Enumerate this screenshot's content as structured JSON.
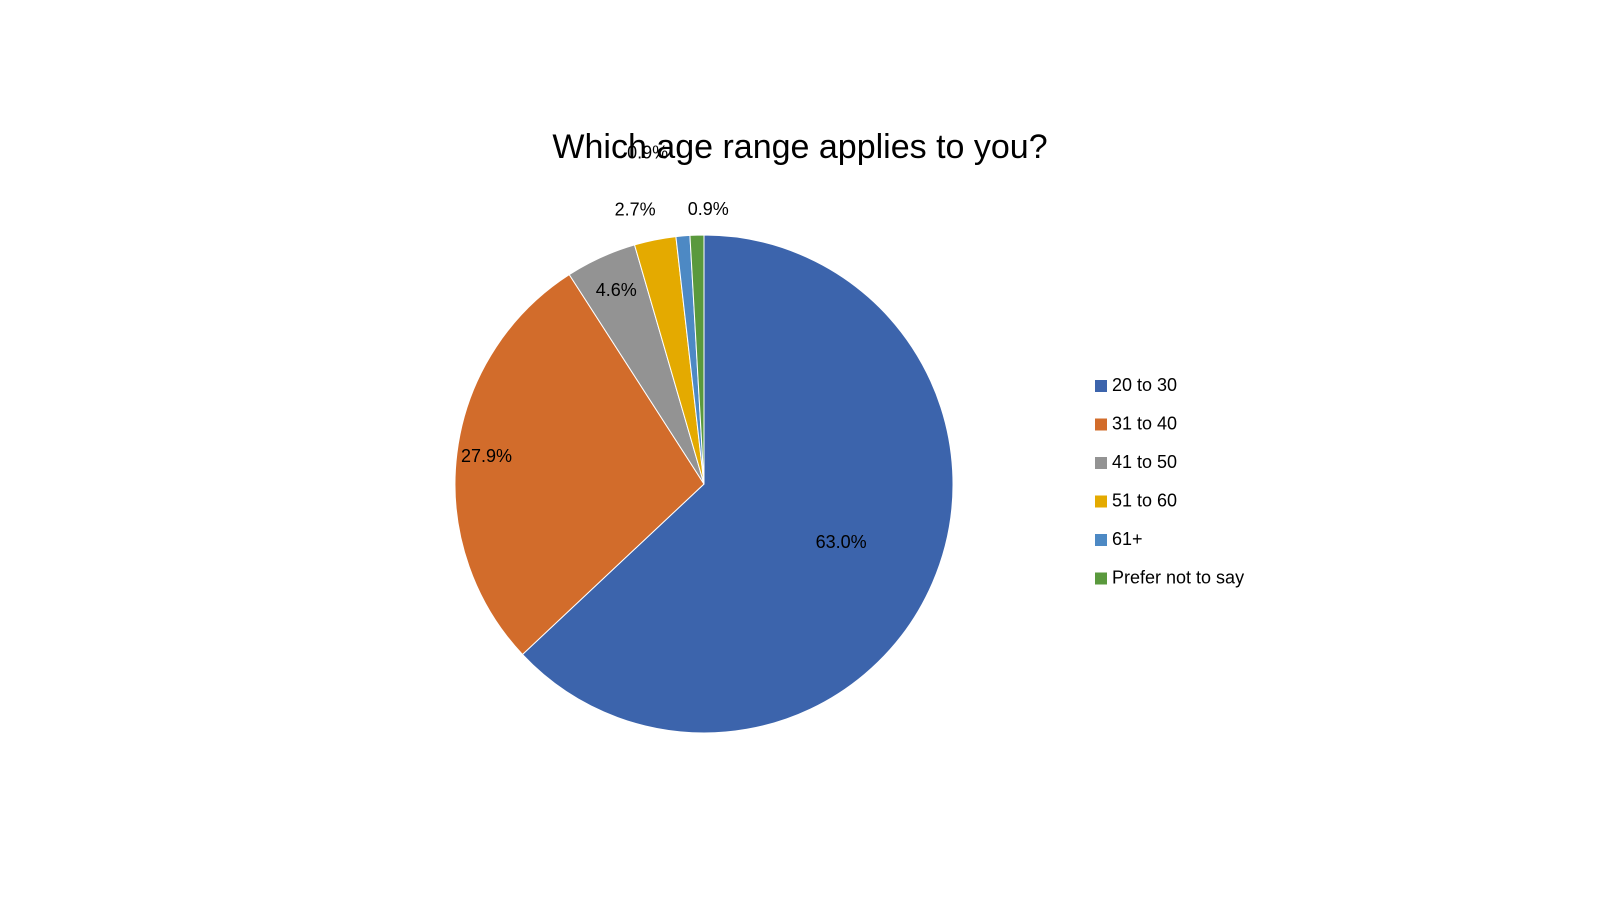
{
  "chart_data": {
    "type": "pie",
    "title": "Which age range applies to you?",
    "categories": [
      "20 to 30",
      "31 to 40",
      "41 to 50",
      "51 to 60",
      "61+",
      "Prefer not to say"
    ],
    "values": [
      63.0,
      27.9,
      4.6,
      2.7,
      0.9,
      0.9
    ],
    "data_labels": [
      "63.0%",
      "27.9%",
      "4.6%",
      "2.7%",
      "0.9%",
      "0.9%"
    ],
    "colors": [
      "#3c64ac",
      "#d26c2b",
      "#939393",
      "#e4aa00",
      "#4d89c4",
      "#5a993d"
    ],
    "legend_position": "right",
    "start_direction": "top",
    "direction": "clockwise"
  }
}
